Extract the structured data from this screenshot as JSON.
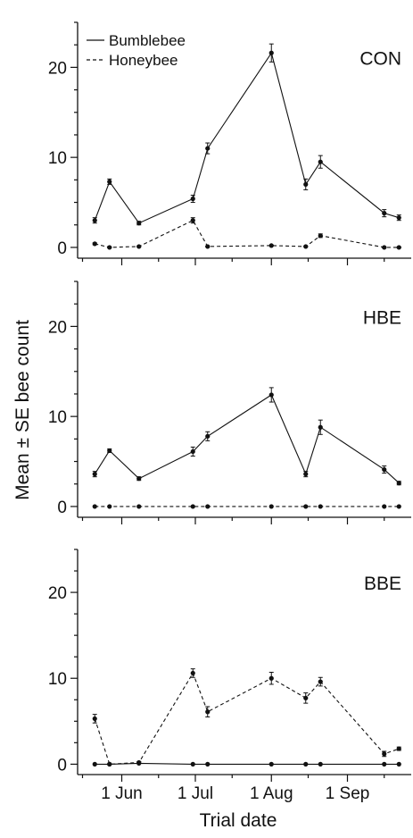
{
  "y_axis_title": "Mean ± SE bee count",
  "x_axis_title": "Trial date",
  "chart_data": {
    "type": "line",
    "xlabel": "Trial date",
    "ylabel": "Mean ± SE bee count",
    "x_ticks": [
      "1 Jun",
      "1 Jul",
      "1 Aug",
      "1 Sep"
    ],
    "y_ticks": [
      0,
      10,
      20
    ],
    "ylim": [
      -1,
      25
    ],
    "x": [
      "2019-05-21",
      "2019-05-27",
      "2019-06-08",
      "2019-06-30",
      "2019-07-06",
      "2019-08-01",
      "2019-08-15",
      "2019-08-21",
      "2019-09-16",
      "2019-09-22"
    ],
    "legend": [
      {
        "name": "Bumblebee",
        "style": "solid"
      },
      {
        "name": "Honeybee",
        "style": "dashed"
      }
    ],
    "legend_position": "top-left of first panel",
    "panels": [
      {
        "label": "CON",
        "series": [
          {
            "name": "Bumblebee",
            "style": "solid",
            "values": [
              3.0,
              7.3,
              2.7,
              5.4,
              11.0,
              21.6,
              7.0,
              9.5,
              3.8,
              3.3
            ],
            "se": [
              0.3,
              0.3,
              0.2,
              0.4,
              0.6,
              1.0,
              0.6,
              0.7,
              0.4,
              0.3
            ]
          },
          {
            "name": "Honeybee",
            "style": "dashed",
            "values": [
              0.4,
              0.0,
              0.1,
              3.0,
              0.1,
              0.2,
              0.1,
              1.3,
              0.0,
              0.0
            ],
            "se": [
              0.1,
              0.05,
              0.05,
              0.3,
              0.05,
              0.05,
              0.05,
              0.2,
              0.05,
              0.05
            ]
          }
        ]
      },
      {
        "label": "HBE",
        "series": [
          {
            "name": "Bumblebee",
            "style": "solid",
            "values": [
              3.6,
              6.2,
              3.1,
              6.1,
              7.8,
              12.4,
              3.6,
              8.8,
              4.1,
              2.6
            ],
            "se": [
              0.3,
              0.2,
              0.2,
              0.5,
              0.5,
              0.8,
              0.3,
              0.8,
              0.4,
              0.2
            ]
          },
          {
            "name": "Honeybee",
            "style": "dashed",
            "values": [
              0,
              0,
              0,
              0,
              0,
              0,
              0,
              0,
              0,
              0
            ],
            "se": [
              0,
              0,
              0,
              0,
              0,
              0,
              0,
              0,
              0,
              0
            ]
          }
        ]
      },
      {
        "label": "BBE",
        "series": [
          {
            "name": "Bumblebee",
            "style": "solid",
            "values": [
              0,
              0,
              0.1,
              0,
              0,
              0,
              0,
              0,
              0,
              0
            ],
            "se": [
              0,
              0,
              0,
              0,
              0,
              0,
              0,
              0,
              0,
              0
            ]
          },
          {
            "name": "Honeybee",
            "style": "dashed",
            "values": [
              5.3,
              0.0,
              0.2,
              10.6,
              6.1,
              10.0,
              7.7,
              9.6,
              1.2,
              1.8
            ],
            "se": [
              0.5,
              0.05,
              0.1,
              0.5,
              0.6,
              0.7,
              0.6,
              0.5,
              0.3,
              0.2
            ]
          }
        ]
      }
    ]
  }
}
